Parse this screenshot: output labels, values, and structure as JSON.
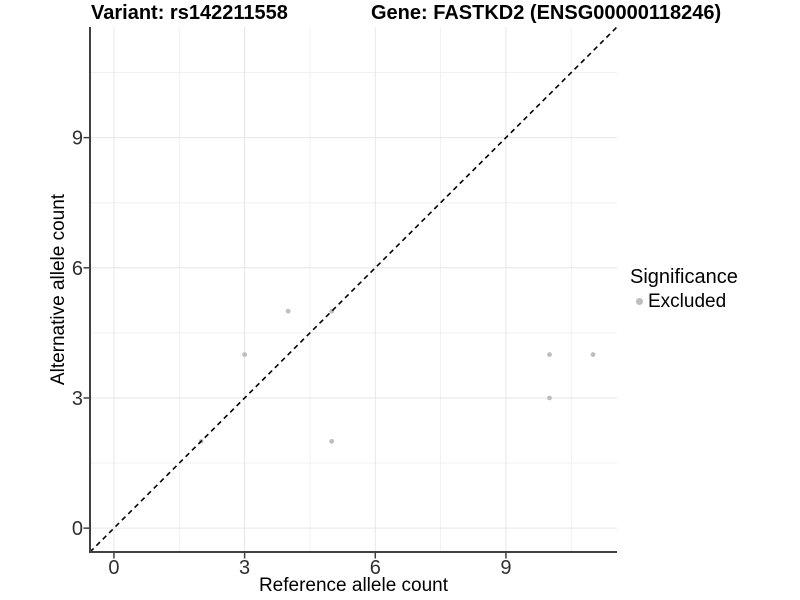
{
  "figure": {
    "title_variant": "Variant: rs142211558",
    "title_gene": "Gene: FASTKD2 (ENSG00000118246)"
  },
  "chart_data": {
    "type": "scatter",
    "title": "Variant: rs142211558  Gene: FASTKD2 (ENSG00000118246)",
    "xlabel": "Reference allele count",
    "ylabel": "Alternative allele count",
    "xlim": [
      -0.55,
      11.55
    ],
    "ylim": [
      -0.55,
      11.55
    ],
    "x_ticks": [
      0,
      3,
      6,
      9
    ],
    "y_ticks": [
      0,
      3,
      6,
      9
    ],
    "x_minor_ticks": [
      1.5,
      4.5,
      7.5,
      10.5
    ],
    "y_minor_ticks": [
      1.5,
      4.5,
      7.5,
      10.5
    ],
    "grid": true,
    "identity_line": {
      "equation": "y = x",
      "style": "dashed",
      "color": "#000000"
    },
    "series": [
      {
        "name": "Excluded",
        "color": "#bebebe",
        "points": [
          {
            "x": 2,
            "y": 2
          },
          {
            "x": 3,
            "y": 4
          },
          {
            "x": 4,
            "y": 5
          },
          {
            "x": 5,
            "y": 5
          },
          {
            "x": 5,
            "y": 2
          },
          {
            "x": 10,
            "y": 4
          },
          {
            "x": 10,
            "y": 3
          },
          {
            "x": 11,
            "y": 4
          }
        ]
      }
    ],
    "legend": {
      "title": "Significance",
      "position": "right",
      "entries": [
        {
          "label": "Excluded",
          "color": "#bebebe"
        }
      ]
    },
    "colors": {
      "background": "#ffffff",
      "grid_major": "#e6e6e6",
      "grid_minor": "#f0f0f0",
      "axis_line": "#404040",
      "tick_label": "#303030",
      "axis_title": "#000000"
    }
  }
}
